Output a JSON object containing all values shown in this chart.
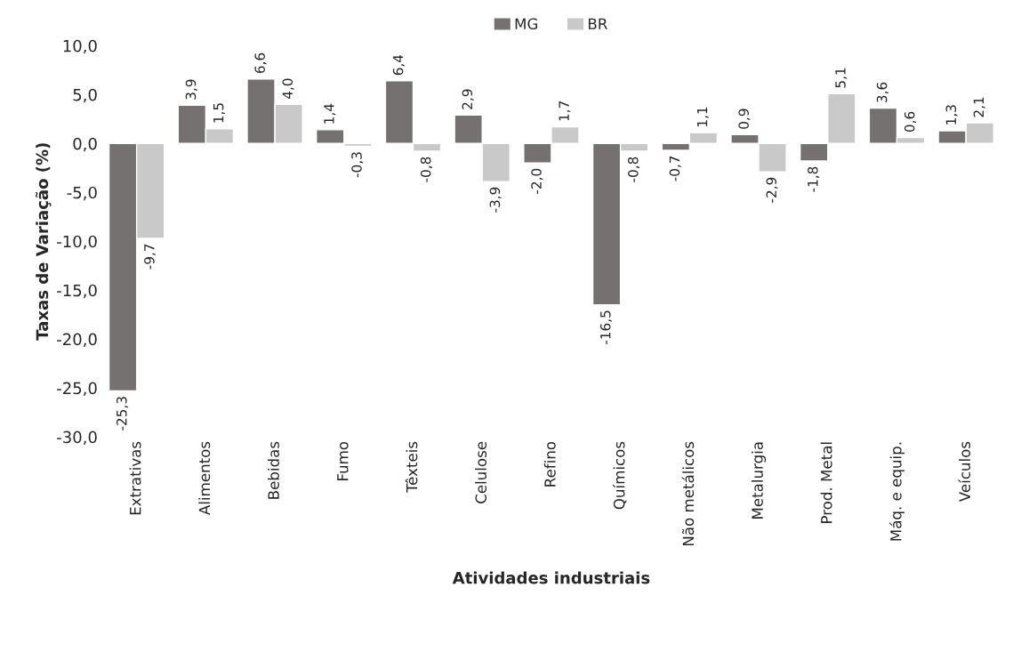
{
  "chart_data": {
    "type": "bar",
    "xlabel": "Atividades industriais",
    "ylabel": "Taxas de Variação (%)",
    "categories": [
      "Extrativas",
      "Alimentos",
      "Bebidas",
      "Fumo",
      "Têxteis",
      "Celulose",
      "Refino",
      "Químicos",
      "Não metálicos",
      "Metalurgia",
      "Prod. Metal",
      "Máq. e equip.",
      "Veículos"
    ],
    "series": [
      {
        "name": "MG",
        "color": "#767171",
        "values": [
          -25.3,
          3.9,
          6.6,
          1.4,
          6.4,
          2.9,
          -2.0,
          -16.5,
          -0.7,
          0.9,
          -1.8,
          3.6,
          1.3
        ],
        "value_labels": [
          "-25,3",
          "3,9",
          "6,6",
          "1,4",
          "6,4",
          "2,9",
          "-2,0",
          "-16,5",
          "-0,7",
          "0,9",
          "-1,8",
          "3,6",
          "1,3"
        ]
      },
      {
        "name": "BR",
        "color": "#c9c9c9",
        "values": [
          -9.7,
          1.5,
          4.0,
          -0.3,
          -0.8,
          -3.9,
          1.7,
          -0.8,
          1.1,
          -2.9,
          5.1,
          0.6,
          2.1
        ],
        "value_labels": [
          "-9,7",
          "1,5",
          "4,0",
          "-0,3",
          "-0,8",
          "-3,9",
          "1,7",
          "-0,8",
          "1,1",
          "-2,9",
          "5,1",
          "0,6",
          "2,1"
        ]
      }
    ],
    "ylim": [
      -30,
      10
    ],
    "yticks": [
      {
        "value": -30,
        "label": "-30,0"
      },
      {
        "value": -25,
        "label": "-25,0"
      },
      {
        "value": -20,
        "label": "-20,0"
      },
      {
        "value": -15,
        "label": "-15,0"
      },
      {
        "value": -10,
        "label": "-10,0"
      },
      {
        "value": -5,
        "label": "-5,0"
      },
      {
        "value": 0,
        "label": "0,0"
      },
      {
        "value": 5,
        "label": "5,0"
      },
      {
        "value": 10,
        "label": "10,0"
      }
    ],
    "grid": false,
    "legend": "top"
  }
}
